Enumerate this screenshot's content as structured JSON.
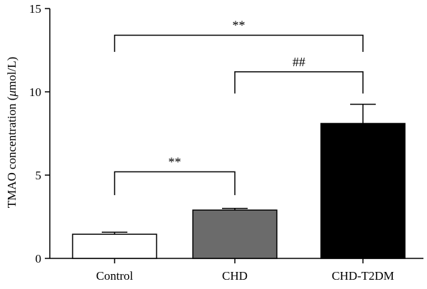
{
  "chart_data": {
    "type": "bar",
    "categories": [
      "Control",
      "CHD",
      "CHD-T2DM"
    ],
    "values": [
      1.45,
      2.9,
      8.1
    ],
    "errors": [
      0.12,
      0.1,
      1.15
    ],
    "bar_colors": [
      "#ffffff",
      "#6b6b6b",
      "#000000"
    ],
    "ylabel": "TMAO concentration (μmol/L)",
    "ylabel_parts": [
      "TMAO concentration (",
      "μ",
      "mol/L)"
    ],
    "ylim": [
      0,
      15
    ],
    "yticks": [
      0,
      5,
      10,
      15
    ],
    "grid": false,
    "annotations": [
      {
        "from": 0,
        "to": 2,
        "label": "**",
        "bracket_y": 13.4,
        "leg_y": 12.4
      },
      {
        "from": 1,
        "to": 2,
        "label": "##",
        "bracket_y": 11.2,
        "leg_y": 9.9
      },
      {
        "from": 0,
        "to": 1,
        "label": "**",
        "bracket_y": 5.2,
        "leg_y": 3.8
      }
    ]
  }
}
